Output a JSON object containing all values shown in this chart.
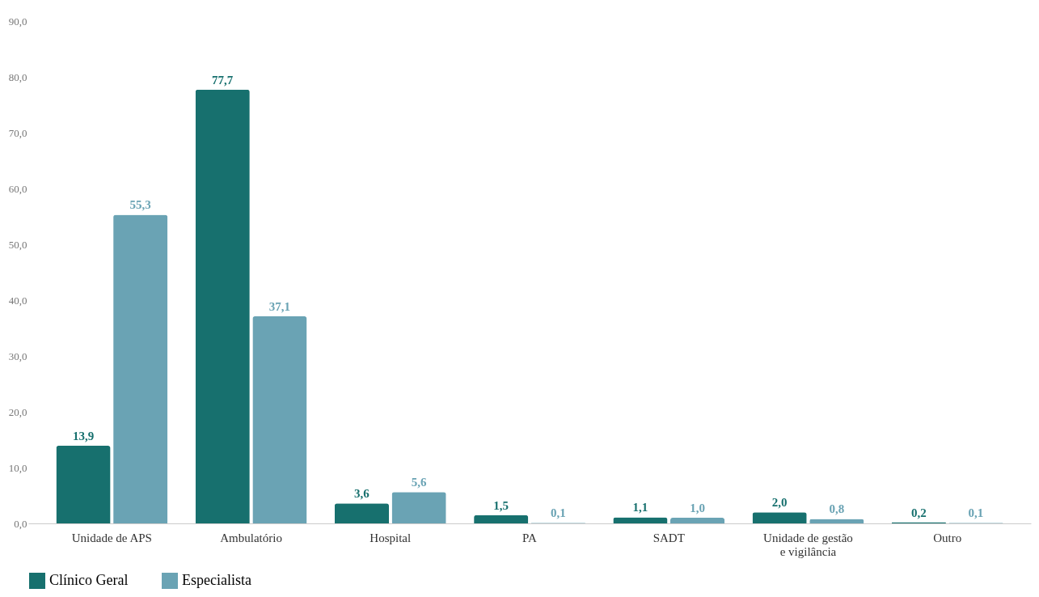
{
  "chart_data": {
    "type": "bar",
    "categories": [
      "Unidade de APS",
      "Ambulatório",
      "Hospital",
      "PA",
      "SADT",
      "Unidade de gestão e vigilância",
      "Outro"
    ],
    "series": [
      {
        "name": "Clínico Geral",
        "color": "#17706e",
        "values": [
          13.9,
          77.7,
          3.6,
          1.5,
          1.1,
          2.0,
          0.2
        ],
        "value_labels": [
          "13,9",
          "77,7",
          "3,6",
          "1,5",
          "1,1",
          "2,0",
          "0,2"
        ]
      },
      {
        "name": "Especialista",
        "color": "#6aa3b4",
        "values": [
          55.3,
          37.1,
          5.6,
          0.1,
          1.0,
          0.8,
          0.1
        ],
        "value_labels": [
          "55,3",
          "37,1",
          "5,6",
          "0,1",
          "1,0",
          "0,8",
          "0,1"
        ]
      }
    ],
    "ylim": [
      0,
      90
    ],
    "yticks": [
      {
        "value": 0,
        "label": "0,0"
      },
      {
        "value": 10,
        "label": "10,0"
      },
      {
        "value": 20,
        "label": "20,0"
      },
      {
        "value": 30,
        "label": "30,0"
      },
      {
        "value": 40,
        "label": "40,0"
      },
      {
        "value": 50,
        "label": "50,0"
      },
      {
        "value": 60,
        "label": "60,0"
      },
      {
        "value": 70,
        "label": "70,0"
      },
      {
        "value": 80,
        "label": "80,0"
      },
      {
        "value": 90,
        "label": "90,0"
      }
    ],
    "grid": false,
    "legend": "bottom"
  }
}
